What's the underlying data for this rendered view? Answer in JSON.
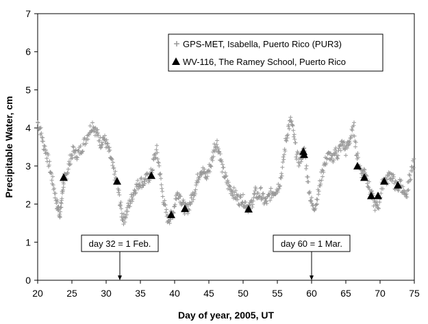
{
  "chart_data": {
    "type": "scatter",
    "xlabel": "Day of year, 2005, UT",
    "ylabel": "Precipitable Water, cm",
    "xlim": [
      20,
      75
    ],
    "ylim": [
      0,
      7
    ],
    "xticks": [
      20,
      25,
      30,
      35,
      40,
      45,
      50,
      55,
      60,
      65,
      70,
      75
    ],
    "yticks": [
      0,
      1,
      2,
      3,
      4,
      5,
      6,
      7
    ],
    "legend_position": "top-right",
    "series": [
      {
        "name": "GPS-MET, Isabella, Puerto Rico  (PUR3)",
        "marker": "plus",
        "color": "#999999",
        "points": [
          [
            20.0,
            4.15
          ],
          [
            20.4,
            3.95
          ],
          [
            20.8,
            3.6
          ],
          [
            21.2,
            3.4
          ],
          [
            21.6,
            3.1
          ],
          [
            22.0,
            2.75
          ],
          [
            22.4,
            2.4
          ],
          [
            22.8,
            2.0
          ],
          [
            23.0,
            1.9
          ],
          [
            23.2,
            1.75
          ],
          [
            23.4,
            1.9
          ],
          [
            23.6,
            2.3
          ],
          [
            23.8,
            2.6
          ],
          [
            24.0,
            2.7
          ],
          [
            24.4,
            2.9
          ],
          [
            24.8,
            3.2
          ],
          [
            25.2,
            3.4
          ],
          [
            25.6,
            3.3
          ],
          [
            26.0,
            3.35
          ],
          [
            26.5,
            3.5
          ],
          [
            27.0,
            3.7
          ],
          [
            27.5,
            3.9
          ],
          [
            28.0,
            4.1
          ],
          [
            28.4,
            3.95
          ],
          [
            28.8,
            3.8
          ],
          [
            29.2,
            3.6
          ],
          [
            29.6,
            3.75
          ],
          [
            30.0,
            3.6
          ],
          [
            30.4,
            3.4
          ],
          [
            30.8,
            3.1
          ],
          [
            31.2,
            2.8
          ],
          [
            31.6,
            2.55
          ],
          [
            32.0,
            2.1
          ],
          [
            32.3,
            1.7
          ],
          [
            32.6,
            1.6
          ],
          [
            33.0,
            1.8
          ],
          [
            33.4,
            2.0
          ],
          [
            33.8,
            2.2
          ],
          [
            34.2,
            2.4
          ],
          [
            34.6,
            2.5
          ],
          [
            35.0,
            2.6
          ],
          [
            35.4,
            2.55
          ],
          [
            35.8,
            2.65
          ],
          [
            36.2,
            2.7
          ],
          [
            36.6,
            2.8
          ],
          [
            37.0,
            3.2
          ],
          [
            37.4,
            3.4
          ],
          [
            37.8,
            2.9
          ],
          [
            38.2,
            2.3
          ],
          [
            38.6,
            1.9
          ],
          [
            39.0,
            1.6
          ],
          [
            39.4,
            1.65
          ],
          [
            39.8,
            1.8
          ],
          [
            40.2,
            2.2
          ],
          [
            40.6,
            2.3
          ],
          [
            41.0,
            2.1
          ],
          [
            41.4,
            1.9
          ],
          [
            41.8,
            1.85
          ],
          [
            42.2,
            2.0
          ],
          [
            42.6,
            2.2
          ],
          [
            43.0,
            2.4
          ],
          [
            43.4,
            2.7
          ],
          [
            43.8,
            2.9
          ],
          [
            44.2,
            2.85
          ],
          [
            44.6,
            2.7
          ],
          [
            45.0,
            2.9
          ],
          [
            45.4,
            3.1
          ],
          [
            45.8,
            3.5
          ],
          [
            46.2,
            3.6
          ],
          [
            46.6,
            3.3
          ],
          [
            47.0,
            2.9
          ],
          [
            47.4,
            2.7
          ],
          [
            47.8,
            2.5
          ],
          [
            48.2,
            2.4
          ],
          [
            48.6,
            2.3
          ],
          [
            49.0,
            2.2
          ],
          [
            49.4,
            2.1
          ],
          [
            49.8,
            2.15
          ],
          [
            50.2,
            2.05
          ],
          [
            50.6,
            1.95
          ],
          [
            51.0,
            1.9
          ],
          [
            51.4,
            2.1
          ],
          [
            51.8,
            2.3
          ],
          [
            52.2,
            2.2
          ],
          [
            52.6,
            2.3
          ],
          [
            53.0,
            2.1
          ],
          [
            53.4,
            2.05
          ],
          [
            53.8,
            2.2
          ],
          [
            54.2,
            2.3
          ],
          [
            54.6,
            2.35
          ],
          [
            55.0,
            2.4
          ],
          [
            55.4,
            2.6
          ],
          [
            55.8,
            3.0
          ],
          [
            56.2,
            3.6
          ],
          [
            56.6,
            4.0
          ],
          [
            57.0,
            4.2
          ],
          [
            57.4,
            3.8
          ],
          [
            57.8,
            3.3
          ],
          [
            58.2,
            3.1
          ],
          [
            58.6,
            3.3
          ],
          [
            59.0,
            3.4
          ],
          [
            59.4,
            2.7
          ],
          [
            59.8,
            2.2
          ],
          [
            60.2,
            1.9
          ],
          [
            60.6,
            2.0
          ],
          [
            61.0,
            2.3
          ],
          [
            61.4,
            2.7
          ],
          [
            61.8,
            3.0
          ],
          [
            62.2,
            3.2
          ],
          [
            62.6,
            3.3
          ],
          [
            63.0,
            3.1
          ],
          [
            63.4,
            3.4
          ],
          [
            63.8,
            3.3
          ],
          [
            64.2,
            3.5
          ],
          [
            64.6,
            3.6
          ],
          [
            65.0,
            3.4
          ],
          [
            65.4,
            3.6
          ],
          [
            65.8,
            3.8
          ],
          [
            66.2,
            4.0
          ],
          [
            66.6,
            3.3
          ],
          [
            67.0,
            3.0
          ],
          [
            67.4,
            2.8
          ],
          [
            67.8,
            2.9
          ],
          [
            68.2,
            2.6
          ],
          [
            68.6,
            2.3
          ],
          [
            69.0,
            2.1
          ],
          [
            69.4,
            1.9
          ],
          [
            69.8,
            2.0
          ],
          [
            70.2,
            2.4
          ],
          [
            70.6,
            2.7
          ],
          [
            71.0,
            2.6
          ],
          [
            71.4,
            2.8
          ],
          [
            71.8,
            2.7
          ],
          [
            72.2,
            2.5
          ],
          [
            72.6,
            2.4
          ],
          [
            73.0,
            2.6
          ],
          [
            73.4,
            2.3
          ],
          [
            73.8,
            2.1
          ],
          [
            74.2,
            2.6
          ],
          [
            74.6,
            2.9
          ],
          [
            75.0,
            3.1
          ]
        ]
      },
      {
        "name": "WV-116, The Ramey School, Puerto Rico",
        "marker": "triangle",
        "color": "#000000",
        "points": [
          [
            23.8,
            2.7
          ],
          [
            31.6,
            2.6
          ],
          [
            36.6,
            2.75
          ],
          [
            39.5,
            1.72
          ],
          [
            41.5,
            1.88
          ],
          [
            50.8,
            1.87
          ],
          [
            58.8,
            3.38
          ],
          [
            58.9,
            3.3
          ],
          [
            66.7,
            3.0
          ],
          [
            67.7,
            2.7
          ],
          [
            68.7,
            2.22
          ],
          [
            69.7,
            2.22
          ],
          [
            70.6,
            2.6
          ],
          [
            72.6,
            2.5
          ]
        ]
      }
    ],
    "annotations": [
      {
        "text": "day 32 = 1 Feb.",
        "x": 32
      },
      {
        "text": "day 60 = 1 Mar.",
        "x": 60
      }
    ]
  }
}
